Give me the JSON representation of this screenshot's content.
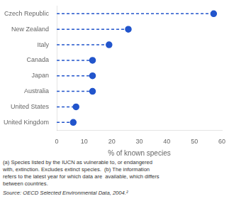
{
  "chart_data": {
    "type": "dot",
    "orientation": "horizontal",
    "categories": [
      "Czech Republic",
      "New Zealand",
      "Italy",
      "Canada",
      "Japan",
      "Australia",
      "United States",
      "United Kingdom"
    ],
    "values": [
      57,
      26,
      19,
      13,
      13,
      13,
      7,
      6
    ],
    "color": "#2255cc",
    "marker": "circle",
    "line_style": "dashed",
    "xlabel": "% of known species",
    "xlim": [
      0,
      60
    ],
    "xticks": [
      0,
      10,
      20,
      30,
      40,
      50,
      60
    ],
    "grid": false,
    "annotations": [
      "(a) Species listed by the IUCN as vulnerable to, or endangered",
      "with, extinction. Excludes extinct species.  (b) The information",
      "refers to the latest year for which data are  available, which differs",
      "between countries.",
      "Source: OECD Selected Environmental Data, 2004.²"
    ]
  }
}
